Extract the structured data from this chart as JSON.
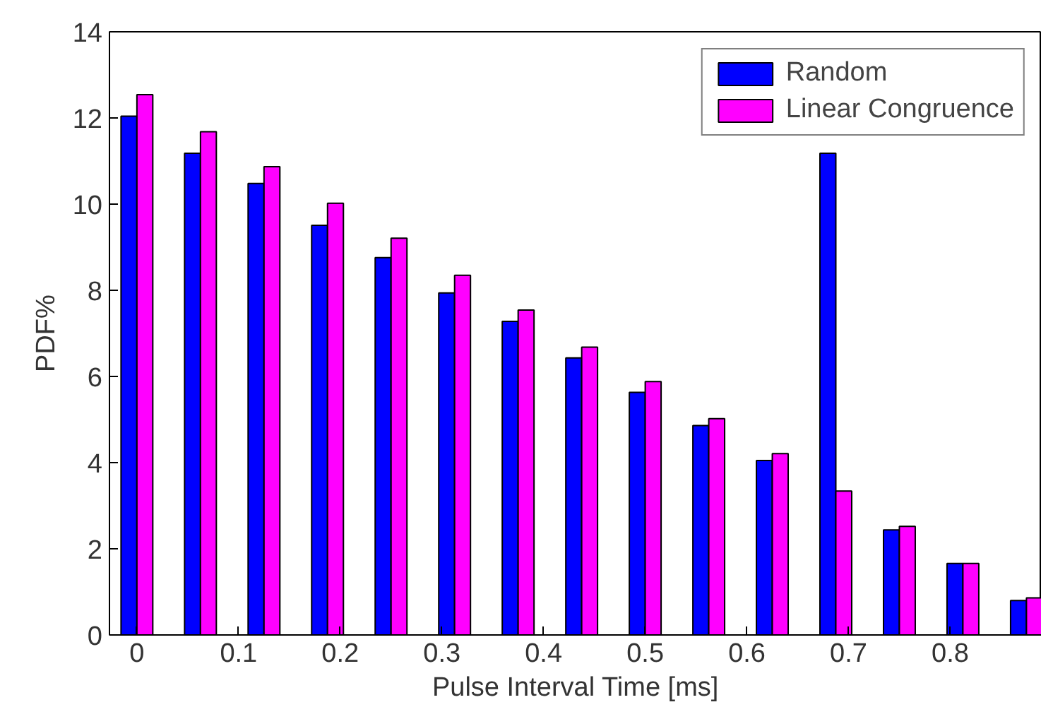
{
  "chart_data": {
    "type": "bar",
    "xlabel": "Pulse Interval Time [ms]",
    "ylabel": "PDF%",
    "x": [
      0,
      0.0625,
      0.125,
      0.1875,
      0.25,
      0.3125,
      0.375,
      0.4375,
      0.5,
      0.5625,
      0.625,
      0.6875,
      0.75,
      0.8125,
      0.875
    ],
    "series": [
      {
        "name": "Random",
        "color": "#0000ff",
        "values": [
          12.04,
          11.18,
          10.48,
          9.51,
          8.76,
          7.94,
          7.28,
          6.43,
          5.63,
          4.86,
          4.05,
          11.18,
          2.44,
          1.66,
          0.8
        ]
      },
      {
        "name": "Linear Congruence",
        "color": "#ff00ff",
        "values": [
          12.54,
          11.68,
          10.87,
          10.02,
          9.21,
          8.35,
          7.54,
          6.68,
          5.88,
          5.02,
          4.21,
          3.34,
          2.52,
          1.66,
          0.86
        ]
      }
    ],
    "xlim": [
      -0.027,
      0.89
    ],
    "ylim": [
      0,
      14
    ],
    "xticks": [
      0,
      0.1,
      0.2,
      0.3,
      0.4,
      0.5,
      0.6,
      0.7,
      0.8
    ],
    "yticks": [
      0,
      2,
      4,
      6,
      8,
      10,
      12,
      14
    ],
    "grid": false,
    "legend": "top right"
  }
}
